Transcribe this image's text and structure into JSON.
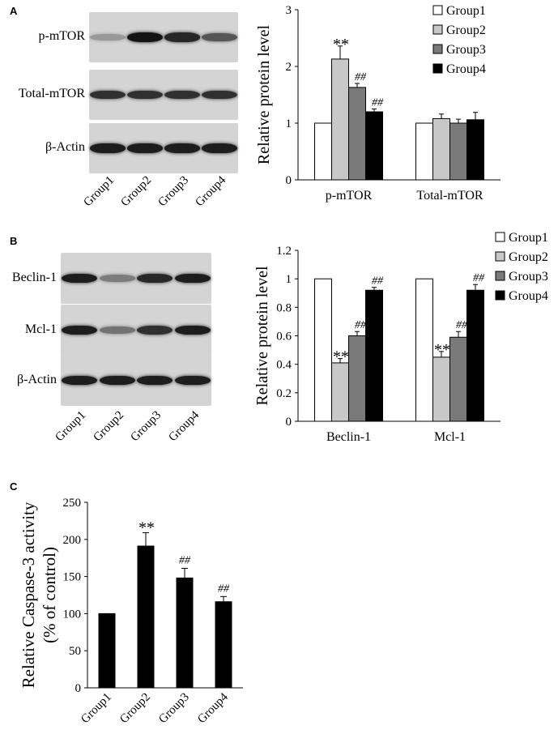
{
  "panels": {
    "A": {
      "letter": "A",
      "blot_rows": [
        {
          "label": "p-mTOR",
          "intensities": [
            0.25,
            0.95,
            0.85,
            0.6
          ]
        },
        {
          "label": "Total-mTOR",
          "intensities": [
            0.8,
            0.8,
            0.8,
            0.8
          ]
        },
        {
          "label": "β-Actin",
          "intensities": [
            0.9,
            0.9,
            0.9,
            0.9
          ]
        }
      ],
      "lanes": [
        "Group1",
        "Group2",
        "Group3",
        "Group4"
      ]
    },
    "B": {
      "letter": "B",
      "blot_rows": [
        {
          "label": "Beclin-1",
          "intensities": [
            0.9,
            0.4,
            0.85,
            0.9
          ]
        },
        {
          "label": "Mcl-1",
          "intensities": [
            0.9,
            0.45,
            0.8,
            0.9
          ]
        },
        {
          "label": "β-Actin",
          "intensities": [
            0.9,
            0.9,
            0.9,
            0.9
          ]
        }
      ],
      "lanes": [
        "Group1",
        "Group2",
        "Group3",
        "Group4"
      ]
    },
    "C": {
      "letter": "C"
    }
  },
  "chart_data": [
    {
      "id": "A",
      "type": "bar",
      "ylabel": "Relative protein level",
      "ylim": [
        0,
        3
      ],
      "yticks": [
        "0",
        "1",
        "2",
        "3"
      ],
      "categories": [
        "p-mTOR",
        "Total-mTOR"
      ],
      "series": [
        {
          "name": "Group1",
          "values": [
            1.0,
            1.0
          ],
          "errors": [
            0,
            0
          ],
          "fill": "#ffffff"
        },
        {
          "name": "Group2",
          "values": [
            2.13,
            1.08
          ],
          "errors": [
            0.23,
            0.08
          ],
          "fill": "#c8c8c8"
        },
        {
          "name": "Group3",
          "values": [
            1.63,
            1.0
          ],
          "errors": [
            0.07,
            0.07
          ],
          "fill": "#7a7a7a"
        },
        {
          "name": "Group4",
          "values": [
            1.2,
            1.06
          ],
          "errors": [
            0.05,
            0.13
          ],
          "fill": "#000000"
        }
      ],
      "annotations": [
        {
          "category": 0,
          "series": 1,
          "text": "**"
        },
        {
          "category": 0,
          "series": 2,
          "text": "##"
        },
        {
          "category": 0,
          "series": 3,
          "text": "##"
        }
      ],
      "legend": "top-right",
      "grid": false
    },
    {
      "id": "B",
      "type": "bar",
      "ylabel": "Relative protein level",
      "ylim": [
        0,
        1.2
      ],
      "yticks": [
        "0",
        "0.2",
        "0.4",
        "0.6",
        "0.8",
        "1",
        "1.2"
      ],
      "categories": [
        "Beclin-1",
        "Mcl-1"
      ],
      "series": [
        {
          "name": "Group1",
          "values": [
            1.0,
            1.0
          ],
          "errors": [
            0,
            0
          ],
          "fill": "#ffffff"
        },
        {
          "name": "Group2",
          "values": [
            0.41,
            0.45
          ],
          "errors": [
            0.03,
            0.04
          ],
          "fill": "#c8c8c8"
        },
        {
          "name": "Group3",
          "values": [
            0.6,
            0.59
          ],
          "errors": [
            0.03,
            0.04
          ],
          "fill": "#7a7a7a"
        },
        {
          "name": "Group4",
          "values": [
            0.92,
            0.92
          ],
          "errors": [
            0.02,
            0.04
          ],
          "fill": "#000000"
        }
      ],
      "annotations": [
        {
          "category": 0,
          "series": 1,
          "text": "**"
        },
        {
          "category": 0,
          "series": 2,
          "text": "##"
        },
        {
          "category": 0,
          "series": 3,
          "text": "##"
        },
        {
          "category": 1,
          "series": 1,
          "text": "**"
        },
        {
          "category": 1,
          "series": 2,
          "text": "##"
        },
        {
          "category": 1,
          "series": 3,
          "text": "##"
        }
      ],
      "legend": "right",
      "grid": false
    },
    {
      "id": "C",
      "type": "bar",
      "ylabel": "Relative Caspase-3 activity (% of control)",
      "ylabel_lines": [
        "Relative Caspase-3 activity",
        "(% of control)"
      ],
      "ylim": [
        0,
        250
      ],
      "yticks": [
        "0",
        "50",
        "100",
        "150",
        "200",
        "250"
      ],
      "categories": [
        "Group1",
        "Group2",
        "Group3",
        "Group4"
      ],
      "values": [
        100,
        191,
        148,
        116
      ],
      "errors": [
        0,
        18,
        13,
        7
      ],
      "annotations": [
        "",
        "**",
        "##",
        "##"
      ],
      "fill": "#000000",
      "grid": false
    }
  ]
}
